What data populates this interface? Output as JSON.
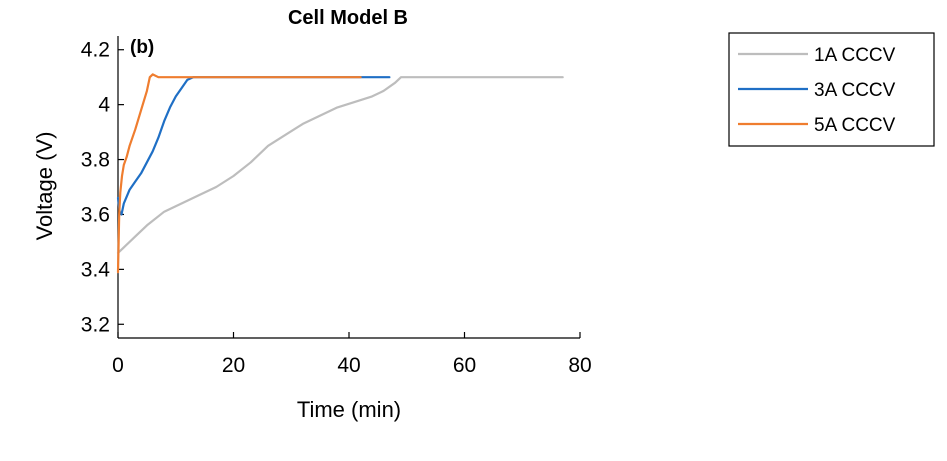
{
  "chart_data": {
    "type": "line",
    "title": "Cell Model B",
    "panel_label": "(b)",
    "xlabel": "Time (min)",
    "ylabel": "Voltage (V)",
    "xlim": [
      0,
      80
    ],
    "ylim": [
      3.15,
      4.25
    ],
    "xticks": [
      0,
      20,
      40,
      60,
      80
    ],
    "xtick_labels": [
      "0",
      "20",
      "40",
      "60",
      "80"
    ],
    "yticks": [
      3.2,
      3.4,
      3.6,
      3.8,
      4.0,
      4.2
    ],
    "ytick_labels": [
      "3.2",
      "3.4",
      "3.6",
      "3.8",
      "4",
      "4.2"
    ],
    "grid": false,
    "legend_position": "outside-top-right",
    "series": [
      {
        "name": "1A CCCV",
        "color": "#bdbdbd",
        "x": [
          0,
          1,
          3,
          5,
          8,
          11,
          14,
          17,
          20,
          23,
          26,
          29,
          32,
          35,
          38,
          41,
          44,
          46,
          48,
          49,
          50,
          55,
          60,
          65,
          70,
          77
        ],
        "y": [
          3.46,
          3.48,
          3.52,
          3.56,
          3.61,
          3.64,
          3.67,
          3.7,
          3.74,
          3.79,
          3.85,
          3.89,
          3.93,
          3.96,
          3.99,
          4.01,
          4.03,
          4.05,
          4.08,
          4.1,
          4.1,
          4.1,
          4.1,
          4.1,
          4.1,
          4.1
        ]
      },
      {
        "name": "3A CCCV",
        "color": "#1f6fc5",
        "x": [
          0,
          0.3,
          0.6,
          1,
          2,
          3,
          4,
          5,
          6,
          7,
          8,
          9,
          10,
          11,
          12,
          13,
          15,
          20,
          25,
          30,
          35,
          40,
          45,
          47
        ],
        "y": [
          3.66,
          3.61,
          3.6,
          3.64,
          3.69,
          3.72,
          3.75,
          3.79,
          3.83,
          3.88,
          3.94,
          3.99,
          4.03,
          4.06,
          4.09,
          4.1,
          4.1,
          4.1,
          4.1,
          4.1,
          4.1,
          4.1,
          4.1,
          4.1
        ]
      },
      {
        "name": "5A CCCV",
        "color": "#ef7d2f",
        "x": [
          0,
          0.2,
          0.4,
          0.7,
          1,
          1.5,
          2,
          3,
          4,
          5,
          5.5,
          6,
          7,
          8,
          10,
          15,
          20,
          25,
          30,
          35,
          40,
          42
        ],
        "y": [
          3.39,
          3.6,
          3.68,
          3.74,
          3.78,
          3.81,
          3.85,
          3.91,
          3.98,
          4.05,
          4.1,
          4.11,
          4.1,
          4.1,
          4.1,
          4.1,
          4.1,
          4.1,
          4.1,
          4.1,
          4.1,
          4.1
        ]
      }
    ]
  }
}
